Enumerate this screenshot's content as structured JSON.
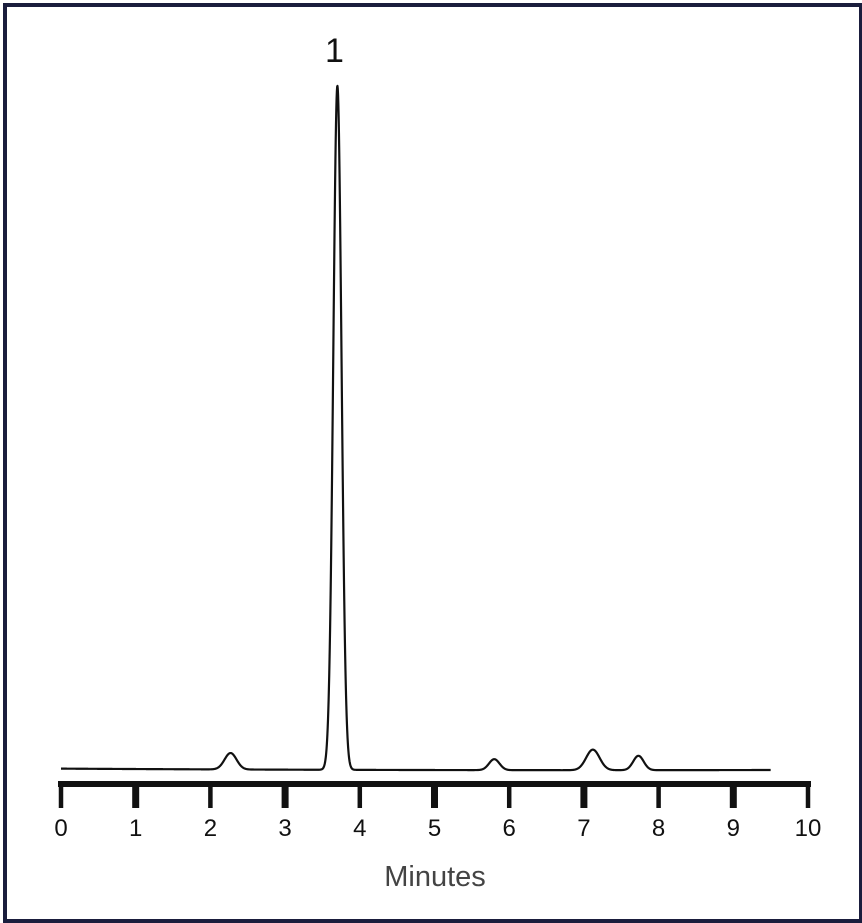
{
  "chart_data": {
    "type": "line",
    "title": "",
    "xlabel": "Minutes",
    "ylabel": "",
    "xlim": [
      0,
      10
    ],
    "ylim": [
      0,
      100
    ],
    "x_ticks": [
      "0",
      "1",
      "2",
      "3",
      "4",
      "5",
      "6",
      "7",
      "8",
      "9",
      "10"
    ],
    "grid": false,
    "legend": "none",
    "line_color": "#111111",
    "baseline": {
      "start": 0.2,
      "mid": 0.0,
      "end": 0.0
    },
    "trace_range": [
      0,
      9.5
    ],
    "peaks": [
      {
        "x": 2.27,
        "height": 2.4,
        "width": 0.08
      },
      {
        "x": 3.7,
        "height": 100,
        "width": 0.055,
        "label": "1"
      },
      {
        "x": 5.8,
        "height": 1.6,
        "width": 0.07
      },
      {
        "x": 7.12,
        "height": 3.0,
        "width": 0.09
      },
      {
        "x": 7.73,
        "height": 2.1,
        "width": 0.07
      }
    ]
  }
}
